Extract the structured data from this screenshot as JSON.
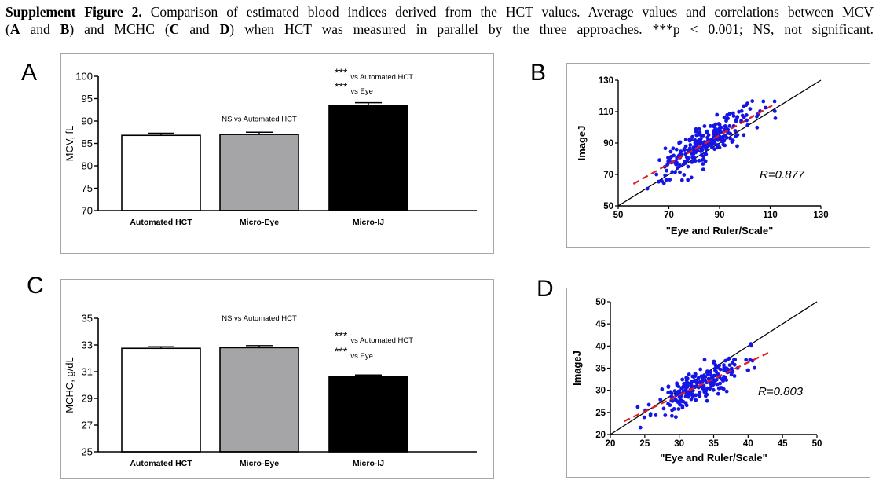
{
  "caption": {
    "lead": "Supplement Figure 2.",
    "line1": " Comparison of estimated blood indices derived from the HCT values. Average values and correlations between MCV",
    "line2_parts": [
      "(",
      "A",
      " and ",
      "B",
      ") and MCHC (",
      "C",
      " and ",
      "D",
      ") when HCT was measured in parallel by the three approaches. ***p < 0.001; NS, not significant."
    ]
  },
  "panels": {
    "A": "A",
    "B": "B",
    "C": "C",
    "D": "D"
  },
  "colors": {
    "automated": "#ffffff",
    "micro_eye": "#a5a5a8",
    "micro_ij": "#000000",
    "scatter_point": "#1515e6",
    "fit_line": "#e11b22",
    "identity_line": "#000000",
    "frame": "#a6a6a6"
  },
  "chart_data": [
    {
      "id": "A",
      "type": "bar",
      "categories": [
        "Automated HCT",
        "Micro-Eye",
        "Micro-IJ"
      ],
      "values": [
        86.8,
        87.0,
        93.5
      ],
      "error": [
        0.5,
        0.5,
        0.6
      ],
      "ylabel": "MCV, fL",
      "ylim": [
        70,
        100
      ],
      "yticks": [
        70,
        75,
        80,
        85,
        90,
        95,
        100
      ],
      "annotations": [
        {
          "bar": 1,
          "lines": [
            {
              "stars": "",
              "text": "NS vs Automated HCT"
            }
          ]
        },
        {
          "bar": 2,
          "lines": [
            {
              "stars": "***",
              "text": "vs Automated HCT"
            },
            {
              "stars": "***",
              "text": "vs Eye"
            }
          ]
        }
      ]
    },
    {
      "id": "B",
      "type": "scatter",
      "xlabel": "\"Eye and Ruler/Scale\"",
      "ylabel": "ImageJ",
      "xlim": [
        50,
        130
      ],
      "ylim": [
        50,
        130
      ],
      "xticks": [
        50,
        70,
        90,
        110,
        130
      ],
      "yticks": [
        50,
        70,
        90,
        110,
        130
      ],
      "r_label": "R=0.877",
      "identity": [
        [
          50,
          50
        ],
        [
          130,
          130
        ]
      ],
      "fit": [
        [
          56,
          64
        ],
        [
          112,
          115
        ]
      ],
      "seed": 7,
      "n_points": 260,
      "x_mean": 84,
      "x_sd": 9,
      "x_range": [
        56,
        112
      ],
      "slope": 0.91,
      "intercept": 13,
      "noise_sd": 6
    },
    {
      "id": "C",
      "type": "bar",
      "categories": [
        "Automated HCT",
        "Micro-Eye",
        "Micro-IJ"
      ],
      "values": [
        32.75,
        32.8,
        30.6
      ],
      "error": [
        0.12,
        0.15,
        0.15
      ],
      "ylabel": "MCHC, g/dL",
      "ylim": [
        25,
        35
      ],
      "yticks": [
        25,
        27,
        29,
        31,
        33,
        35
      ],
      "annotations": [
        {
          "bar": 1,
          "lines": [
            {
              "stars": "",
              "text": "NS vs Automated HCT"
            }
          ]
        },
        {
          "bar": 2,
          "lines": [
            {
              "stars": "***",
              "text": "vs Automated HCT"
            },
            {
              "stars": "***",
              "text": "vs Eye"
            }
          ]
        }
      ]
    },
    {
      "id": "D",
      "type": "scatter",
      "xlabel": "\"Eye and Ruler/Scale\"",
      "ylabel": "ImageJ",
      "xlim": [
        20,
        50
      ],
      "ylim": [
        20,
        50
      ],
      "xticks": [
        20,
        25,
        30,
        35,
        40,
        45,
        50
      ],
      "yticks": [
        20,
        25,
        30,
        35,
        40,
        45,
        50
      ],
      "r_label": "R=0.803",
      "identity": [
        [
          20,
          20
        ],
        [
          50,
          50
        ]
      ],
      "fit": [
        [
          22,
          23
        ],
        [
          43,
          38.5
        ]
      ],
      "seed": 11,
      "n_points": 240,
      "x_mean": 33,
      "x_sd": 3.2,
      "x_range": [
        22.5,
        41
      ],
      "slope": 0.74,
      "intercept": 6.8,
      "noise_sd": 1.9
    }
  ]
}
